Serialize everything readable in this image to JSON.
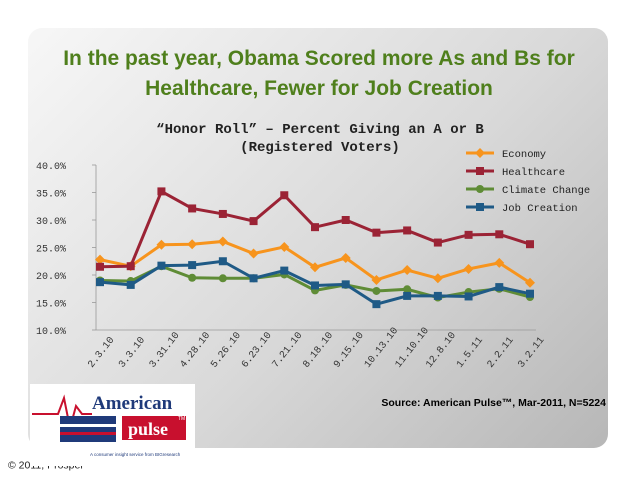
{
  "slide": {
    "headline_line1": "In the past year, Obama Scored more As and Bs for",
    "headline_line2": "Healthcare, Fewer for Job Creation",
    "source": "Source: American Pulse™, Mar-2011, N=5224",
    "copyright": "© 2011, Prosper",
    "copyright_mark": "®"
  },
  "logo": {
    "word1": "American",
    "word2": "pulse",
    "tm": "TM",
    "tagline": "A consumer insight service from BIGresearch",
    "colors": {
      "red": "#c8102e",
      "navy": "#1f3a7a"
    }
  },
  "chart_data": {
    "type": "line",
    "title_line1": "“Honor Roll” – Percent Giving an A or B",
    "title_line2": "(Registered Voters)",
    "categories": [
      "2.3.10",
      "3.3.10",
      "3.31.10",
      "4.28.10",
      "5.26.10",
      "6.23.10",
      "7.21.10",
      "8.18.10",
      "9.15.10",
      "10.13.10",
      "11.10.10",
      "12.8.10",
      "1.5.11",
      "2.2.11",
      "3.2.11"
    ],
    "y_tick_labels": [
      "40.0%",
      "35.0%",
      "30.0%",
      "25.0%",
      "20.0%",
      "15.0%",
      "10.0%"
    ],
    "ylim": [
      10,
      40
    ],
    "y_ticks": [
      40,
      35,
      30,
      25,
      20,
      15,
      10
    ],
    "grid": false,
    "legend_position": "top-right",
    "x_categories_all": [
      "2.3.10",
      "",
      "3.3.10",
      "",
      "3.31.10",
      "",
      "4.28.10",
      "",
      "5.26.10",
      "",
      "6.23.10",
      "",
      "7.21.10",
      "",
      "8.18.10",
      "",
      "9.15.10",
      "",
      "10.13.10",
      "",
      "11.10.10",
      "",
      "12.8.10",
      "",
      "1.5.11",
      "",
      "2.2.11",
      "",
      "3.2.11"
    ],
    "series": [
      {
        "name": "Economy",
        "color": "#f7941d",
        "marker": "diamond",
        "values": [
          22.8,
          21.6,
          25.5,
          25.6,
          26.1,
          23.9,
          25.1,
          21.4,
          23.1,
          19.1,
          20.9,
          19.4,
          21.1,
          22.2,
          18.6
        ]
      },
      {
        "name": "Healthcare",
        "color": "#9b2335",
        "marker": "square",
        "values": [
          21.5,
          21.6,
          35.2,
          32.1,
          31.1,
          29.8,
          34.5,
          28.7,
          30.0,
          27.7,
          28.1,
          25.9,
          27.3,
          27.4,
          25.6
        ]
      },
      {
        "name": "Climate Change",
        "color": "#5f8c36",
        "marker": "circle",
        "values": [
          19.0,
          18.9,
          21.6,
          19.5,
          19.4,
          19.4,
          20.1,
          17.2,
          18.2,
          17.1,
          17.4,
          15.9,
          16.9,
          17.5,
          16.0
        ]
      },
      {
        "name": "Job Creation",
        "color": "#1f5a86",
        "marker": "square",
        "values": [
          18.7,
          18.2,
          21.7,
          21.8,
          22.5,
          19.4,
          20.8,
          18.1,
          18.3,
          14.7,
          16.2,
          16.2,
          16.1,
          17.8,
          16.6
        ]
      }
    ]
  }
}
